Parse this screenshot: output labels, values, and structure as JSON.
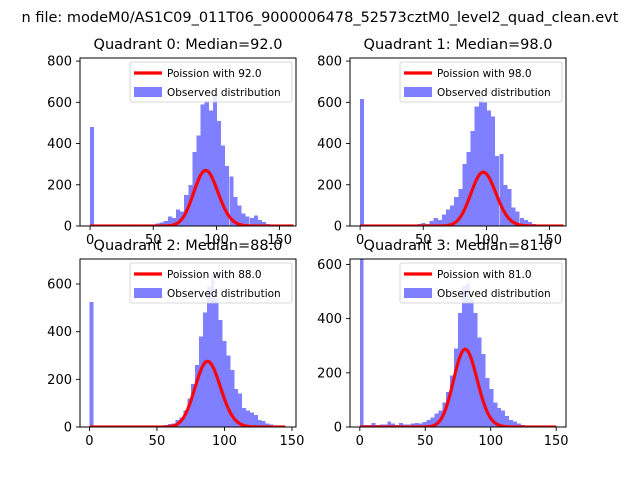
{
  "figure": {
    "suptitle": "n file: modeM0/AS1C09_011T06_9000006478_52573cztM0_level2_quad_clean.evt",
    "colors": {
      "poisson": "#ff0000",
      "observed": "#7f7fff",
      "axis": "#000000",
      "legend_border": "#cccccc"
    }
  },
  "chart_data": [
    {
      "type": "bar",
      "title": "Quadrant 0: Median=92.0",
      "xlim": [
        -8,
        163
      ],
      "ylim": [
        0,
        815
      ],
      "xticks": [
        0,
        50,
        100,
        150
      ],
      "yticks": [
        0,
        200,
        400,
        600,
        800
      ],
      "xlabel": "",
      "ylabel": "",
      "legend": {
        "placement": "upper right",
        "entries": [
          "Poission with 92.0",
          "Observed distribution"
        ]
      },
      "poisson": {
        "label": "Poission with 92.0",
        "mean": 92.0,
        "scale": 6478,
        "x_range": [
          0,
          161
        ]
      },
      "observed": {
        "label": "Observed distribution",
        "bin_width": 3.24,
        "bins": [
          [
            0,
            480
          ],
          [
            32.4,
            5
          ],
          [
            48.6,
            8
          ],
          [
            51.8,
            12
          ],
          [
            55.1,
            18
          ],
          [
            58.3,
            25
          ],
          [
            61.6,
            45
          ],
          [
            64.8,
            40
          ],
          [
            68,
            80
          ],
          [
            71.3,
            70
          ],
          [
            74.5,
            150
          ],
          [
            77.8,
            200
          ],
          [
            81,
            360
          ],
          [
            84.2,
            440
          ],
          [
            87.5,
            590
          ],
          [
            90.7,
            610
          ],
          [
            94,
            560
          ],
          [
            97.2,
            640
          ],
          [
            100.4,
            510
          ],
          [
            103.7,
            390
          ],
          [
            106.9,
            290
          ],
          [
            110.2,
            240
          ],
          [
            113.4,
            140
          ],
          [
            116.6,
            100
          ],
          [
            119.9,
            60
          ],
          [
            123.1,
            45
          ],
          [
            126.4,
            40
          ],
          [
            129.6,
            50
          ],
          [
            132.8,
            30
          ],
          [
            136.1,
            20
          ],
          [
            139.3,
            10
          ],
          [
            142.6,
            8
          ],
          [
            145.8,
            5
          ],
          [
            149,
            3
          ],
          [
            152.3,
            2
          ],
          [
            155.5,
            1
          ]
        ]
      }
    },
    {
      "type": "bar",
      "title": "Quadrant 1: Median=98.0",
      "xlim": [
        -8,
        163
      ],
      "ylim": [
        0,
        815
      ],
      "xticks": [
        0,
        50,
        100,
        150
      ],
      "yticks": [
        0,
        200,
        400,
        600,
        800
      ],
      "xlabel": "",
      "ylabel": "",
      "legend": {
        "placement": "upper right",
        "entries": [
          "Poission with 98.0",
          "Observed distribution"
        ]
      },
      "poisson": {
        "label": "Poission with 98.0",
        "mean": 98.0,
        "scale": 6478,
        "x_range": [
          0,
          161
        ]
      },
      "observed": {
        "label": "Observed distribution",
        "bin_width": 3.24,
        "bins": [
          [
            0,
            615
          ],
          [
            32.4,
            3
          ],
          [
            45.4,
            10
          ],
          [
            48.6,
            15
          ],
          [
            51.8,
            10
          ],
          [
            55.1,
            25
          ],
          [
            58.3,
            40
          ],
          [
            61.6,
            30
          ],
          [
            64.8,
            55
          ],
          [
            68,
            80
          ],
          [
            71.3,
            100
          ],
          [
            74.5,
            140
          ],
          [
            77.8,
            180
          ],
          [
            81,
            300
          ],
          [
            84.2,
            360
          ],
          [
            87.5,
            460
          ],
          [
            90.7,
            580
          ],
          [
            94,
            640
          ],
          [
            97.2,
            600
          ],
          [
            100.4,
            560
          ],
          [
            103.7,
            530
          ],
          [
            106.9,
            340
          ],
          [
            110.2,
            350
          ],
          [
            113.4,
            200
          ],
          [
            116.6,
            180
          ],
          [
            119.9,
            90
          ],
          [
            123.1,
            70
          ],
          [
            126.4,
            40
          ],
          [
            129.6,
            30
          ],
          [
            132.8,
            20
          ],
          [
            136.1,
            10
          ],
          [
            139.3,
            5
          ],
          [
            142.6,
            3
          ],
          [
            145.8,
            2
          ]
        ]
      }
    },
    {
      "type": "bar",
      "title": "Quadrant 2: Median=88.0",
      "xlim": [
        -7,
        153
      ],
      "ylim": [
        0,
        705
      ],
      "xticks": [
        0,
        50,
        100,
        150
      ],
      "yticks": [
        0,
        200,
        400,
        600
      ],
      "xlabel": "",
      "ylabel": "",
      "legend": {
        "placement": "upper right",
        "entries": [
          "Poission with 88.0",
          "Observed distribution"
        ]
      },
      "poisson": {
        "label": "Poission with 88.0",
        "mean": 88.0,
        "scale": 6478,
        "x_range": [
          0,
          145
        ]
      },
      "observed": {
        "label": "Observed distribution",
        "bin_width": 2.9,
        "bins": [
          [
            0,
            525
          ],
          [
            49.3,
            3
          ],
          [
            55.1,
            8
          ],
          [
            58,
            12
          ],
          [
            60.9,
            15
          ],
          [
            63.8,
            30
          ],
          [
            66.7,
            40
          ],
          [
            69.6,
            70
          ],
          [
            72.5,
            120
          ],
          [
            75.4,
            180
          ],
          [
            78.3,
            260
          ],
          [
            81.2,
            380
          ],
          [
            84.1,
            480
          ],
          [
            87,
            590
          ],
          [
            89.9,
            640
          ],
          [
            92.8,
            540
          ],
          [
            95.7,
            450
          ],
          [
            98.6,
            360
          ],
          [
            101.5,
            300
          ],
          [
            104.4,
            240
          ],
          [
            107.3,
            160
          ],
          [
            110.2,
            140
          ],
          [
            113.1,
            80
          ],
          [
            116,
            70
          ],
          [
            118.9,
            60
          ],
          [
            121.8,
            50
          ],
          [
            124.7,
            30
          ],
          [
            127.6,
            25
          ],
          [
            130.5,
            15
          ],
          [
            133.4,
            10
          ],
          [
            136.3,
            5
          ],
          [
            139.2,
            3
          ],
          [
            142.1,
            2
          ]
        ]
      }
    },
    {
      "type": "bar",
      "title": "Quadrant 3: Median=81.0",
      "xlim": [
        -7.5,
        157.5
      ],
      "ylim": [
        0,
        620
      ],
      "xticks": [
        0,
        50,
        100,
        150
      ],
      "yticks": [
        0,
        200,
        400,
        600
      ],
      "xlabel": "",
      "ylabel": "",
      "legend": {
        "placement": "upper right",
        "entries": [
          "Poission with 81.0",
          "Observed distribution"
        ]
      },
      "poisson": {
        "label": "Poission with 81.0",
        "mean": 81.0,
        "scale": 6478,
        "x_range": [
          0,
          150
        ]
      },
      "observed": {
        "label": "Observed distribution",
        "bin_width": 3.0,
        "bins": [
          [
            0,
            620
          ],
          [
            3,
            8
          ],
          [
            6,
            8
          ],
          [
            9,
            15
          ],
          [
            12,
            8
          ],
          [
            15,
            10
          ],
          [
            18,
            10
          ],
          [
            21,
            20
          ],
          [
            24,
            12
          ],
          [
            27,
            8
          ],
          [
            30,
            15
          ],
          [
            33,
            10
          ],
          [
            36,
            10
          ],
          [
            39,
            12
          ],
          [
            42,
            15
          ],
          [
            45,
            12
          ],
          [
            48,
            18
          ],
          [
            51,
            25
          ],
          [
            54,
            35
          ],
          [
            57,
            50
          ],
          [
            60,
            60
          ],
          [
            63,
            90
          ],
          [
            66,
            130
          ],
          [
            69,
            190
          ],
          [
            72,
            290
          ],
          [
            75,
            420
          ],
          [
            78,
            520
          ],
          [
            81,
            530
          ],
          [
            84,
            470
          ],
          [
            87,
            420
          ],
          [
            90,
            330
          ],
          [
            93,
            270
          ],
          [
            96,
            180
          ],
          [
            99,
            140
          ],
          [
            102,
            90
          ],
          [
            105,
            70
          ],
          [
            108,
            60
          ],
          [
            111,
            40
          ],
          [
            114,
            25
          ],
          [
            117,
            20
          ],
          [
            120,
            12
          ],
          [
            123,
            8
          ],
          [
            126,
            5
          ],
          [
            129,
            3
          ],
          [
            132,
            2
          ]
        ]
      }
    }
  ]
}
